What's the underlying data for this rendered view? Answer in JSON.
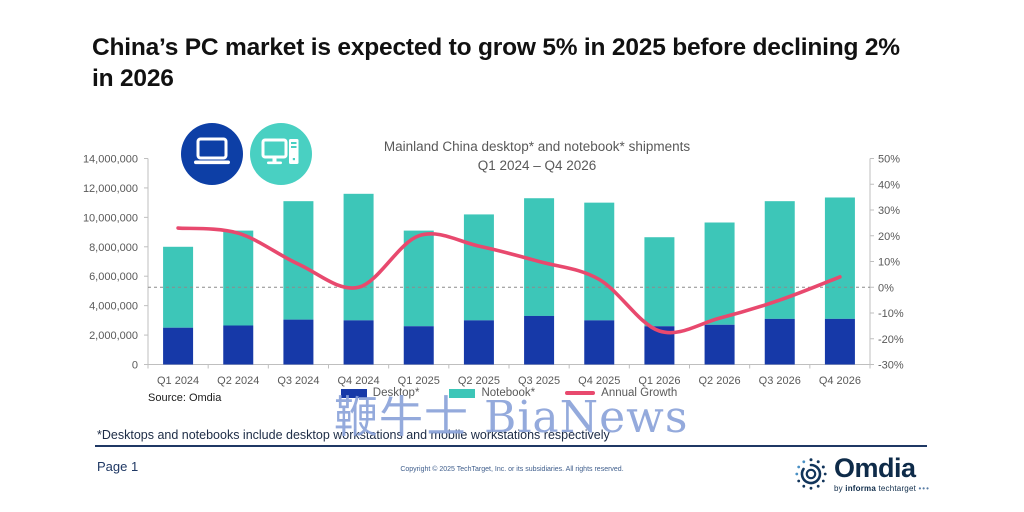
{
  "page": {
    "title_line1": "China’s PC market is expected to grow 5% in 2025 before declining 2%",
    "title_line2": "in 2026",
    "source": "Source: Omdia",
    "watermark": "鞭牛士 BiaNews",
    "footnote": "*Desktops and notebooks include desktop workstations and mobile workstations respectively",
    "page_number": "Page 1",
    "copyright": "Copyright © 2025 TechTarget, Inc. or its subsidiaries. All rights reserved."
  },
  "icons": {
    "laptop": "laptop-icon",
    "desktop_pc": "desktop-pc-icon",
    "omdia_swirl": "omdia-logo-icon"
  },
  "brand": {
    "name": "Omdia",
    "tagline_by": "by ",
    "tagline_informa": "informa",
    "tagline_rest": " techtarget ",
    "tagline_dots": "•••"
  },
  "colors": {
    "desktop_bar": "#1639a8",
    "notebook_bar": "#3dc6b8",
    "growth_line": "#e8496e",
    "icon_blue": "#0d3fa6",
    "icon_teal": "#49d0c2",
    "watermark_blue": "#8ba3da",
    "footer_navy": "#1f3864",
    "axis_grey": "#bfbfbf",
    "label_grey": "#595959"
  },
  "chart_data": {
    "type": "combo (stacked bar + line)",
    "title": "Mainland China desktop* and notebook* shipments",
    "subtitle": "Q1 2024 – Q4 2026",
    "categories": [
      "Q1 2024",
      "Q2 2024",
      "Q3 2024",
      "Q4 2024",
      "Q1 2025",
      "Q2 2025",
      "Q3 2025",
      "Q4 2025",
      "Q1 2026",
      "Q2 2026",
      "Q3 2026",
      "Q4 2026"
    ],
    "series": [
      {
        "name": "Desktop*",
        "type": "bar",
        "color": "#1639a8",
        "values": [
          2500000,
          2650000,
          3050000,
          3000000,
          2600000,
          3000000,
          3300000,
          3000000,
          2600000,
          2700000,
          3100000,
          3100000
        ]
      },
      {
        "name": "Notebook*",
        "type": "bar",
        "color": "#3dc6b8",
        "values": [
          5500000,
          6450000,
          8050000,
          8600000,
          6500000,
          7200000,
          8000000,
          8000000,
          6050000,
          6950000,
          8000000,
          8250000
        ]
      },
      {
        "name": "Annual Growth",
        "type": "line",
        "color": "#e8496e",
        "unit": "%",
        "values": [
          23,
          21,
          9,
          0,
          20,
          16,
          10,
          3,
          -17,
          -12,
          -5,
          4
        ]
      }
    ],
    "left_axis": {
      "min": 0,
      "max": 14000000,
      "step": 2000000,
      "ticks": [
        "0",
        "2,000,000",
        "4,000,000",
        "6,000,000",
        "8,000,000",
        "10,000,000",
        "12,000,000",
        "14,000,000"
      ]
    },
    "right_axis": {
      "min": -30,
      "max": 50,
      "step": 10,
      "ticks": [
        "-30%",
        "-20%",
        "-10%",
        "0%",
        "10%",
        "20%",
        "30%",
        "40%",
        "50%"
      ]
    },
    "gridline": {
      "at_right_axis_value": 0,
      "style": "dashed"
    },
    "legend_position": "bottom",
    "bar_mode": "stacked"
  }
}
